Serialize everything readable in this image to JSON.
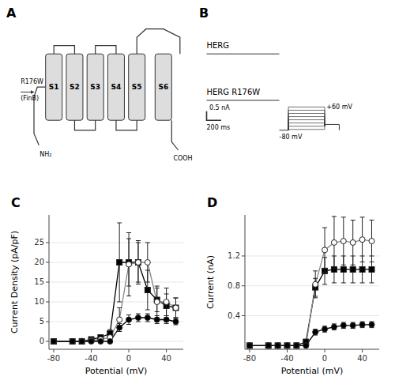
{
  "chart_data": [
    {
      "type": "diagram",
      "title": "A",
      "annotations": [
        "S1",
        "S2",
        "S3",
        "S4",
        "S5",
        "S6",
        "NH₂",
        "COOH",
        "R176W",
        "(FinB)"
      ]
    },
    {
      "type": "diagram",
      "title": "B",
      "annotations": [
        "HERG",
        "HERG R176W",
        "0.5 nA",
        "200 ms",
        "+60 mV",
        "-80 mV"
      ]
    },
    {
      "type": "line",
      "title": "C",
      "xlabel": "Potential (mV)",
      "ylabel": "Current Density (pA/pF)",
      "xlim": [
        -85,
        58
      ],
      "ylim": [
        -2,
        32
      ],
      "xticks": [
        -80,
        -40,
        0,
        40
      ],
      "yticks": [
        0,
        5,
        10,
        15,
        20,
        25
      ],
      "x": [
        -80,
        -60,
        -50,
        -40,
        -30,
        -20,
        -10,
        0,
        10,
        20,
        30,
        40,
        50
      ],
      "series": [
        {
          "color": "#000000",
          "marker": "square",
          "values": [
            0.0,
            0.0,
            0.0,
            0.5,
            1.0,
            2.0,
            20.0,
            20.0,
            20.0,
            13.0,
            10.5,
            9.0,
            8.5
          ],
          "errors": [
            0.0,
            0.0,
            0.0,
            0.2,
            0.5,
            1.0,
            10.0,
            6.0,
            5.0,
            5.0,
            3.0,
            3.0,
            2.5
          ]
        },
        {
          "color": "#888888",
          "marker": "circle-open",
          "values": [
            0.0,
            0.0,
            0.1,
            0.2,
            0.5,
            1.0,
            5.5,
            19.5,
            20.0,
            20.0,
            10.0,
            10.0,
            8.5
          ],
          "errors": [
            0.0,
            0.0,
            0.1,
            0.1,
            0.3,
            0.5,
            3.0,
            8.0,
            5.5,
            5.0,
            4.0,
            3.5,
            2.5
          ]
        },
        {
          "color": "#000000",
          "marker": "circle",
          "values": [
            0.0,
            0.0,
            0.0,
            0.0,
            0.0,
            0.0,
            3.5,
            5.5,
            6.0,
            6.0,
            5.5,
            5.5,
            5.0
          ],
          "errors": [
            0.0,
            0.0,
            0.0,
            0.0,
            0.0,
            0.0,
            1.0,
            1.2,
            1.0,
            1.0,
            1.0,
            1.0,
            0.8
          ]
        }
      ]
    },
    {
      "type": "line",
      "title": "D",
      "xlabel": "Potential (mV)",
      "ylabel": "Current (nA)",
      "xlim": [
        -85,
        58
      ],
      "ylim": [
        -0.05,
        1.75
      ],
      "xticks": [
        -80,
        -40,
        0,
        40
      ],
      "yticks": [
        0.4,
        0.8,
        1.2
      ],
      "x": [
        -80,
        -60,
        -50,
        -40,
        -30,
        -20,
        -10,
        0,
        10,
        20,
        30,
        40,
        50
      ],
      "series": [
        {
          "color": "#000000",
          "marker": "square",
          "values": [
            0.0,
            0.0,
            0.0,
            0.0,
            0.0,
            0.05,
            0.78,
            1.0,
            1.02,
            1.02,
            1.02,
            1.02,
            1.02
          ],
          "errors": [
            0.0,
            0.0,
            0.0,
            0.0,
            0.0,
            0.02,
            0.12,
            0.18,
            0.18,
            0.18,
            0.18,
            0.18,
            0.18
          ]
        },
        {
          "color": "#888888",
          "marker": "circle-open",
          "values": [
            0.0,
            0.0,
            0.0,
            0.0,
            0.0,
            0.0,
            0.82,
            1.28,
            1.38,
            1.4,
            1.38,
            1.42,
            1.4
          ],
          "errors": [
            0.0,
            0.0,
            0.0,
            0.0,
            0.0,
            0.0,
            0.18,
            0.3,
            0.35,
            0.32,
            0.3,
            0.3,
            0.28
          ]
        },
        {
          "color": "#000000",
          "marker": "circle",
          "values": [
            0.0,
            0.0,
            0.0,
            0.0,
            0.0,
            0.0,
            0.18,
            0.22,
            0.25,
            0.27,
            0.27,
            0.28,
            0.28
          ],
          "errors": [
            0.0,
            0.0,
            0.0,
            0.0,
            0.0,
            0.0,
            0.04,
            0.04,
            0.04,
            0.04,
            0.04,
            0.04,
            0.04
          ]
        }
      ]
    }
  ]
}
